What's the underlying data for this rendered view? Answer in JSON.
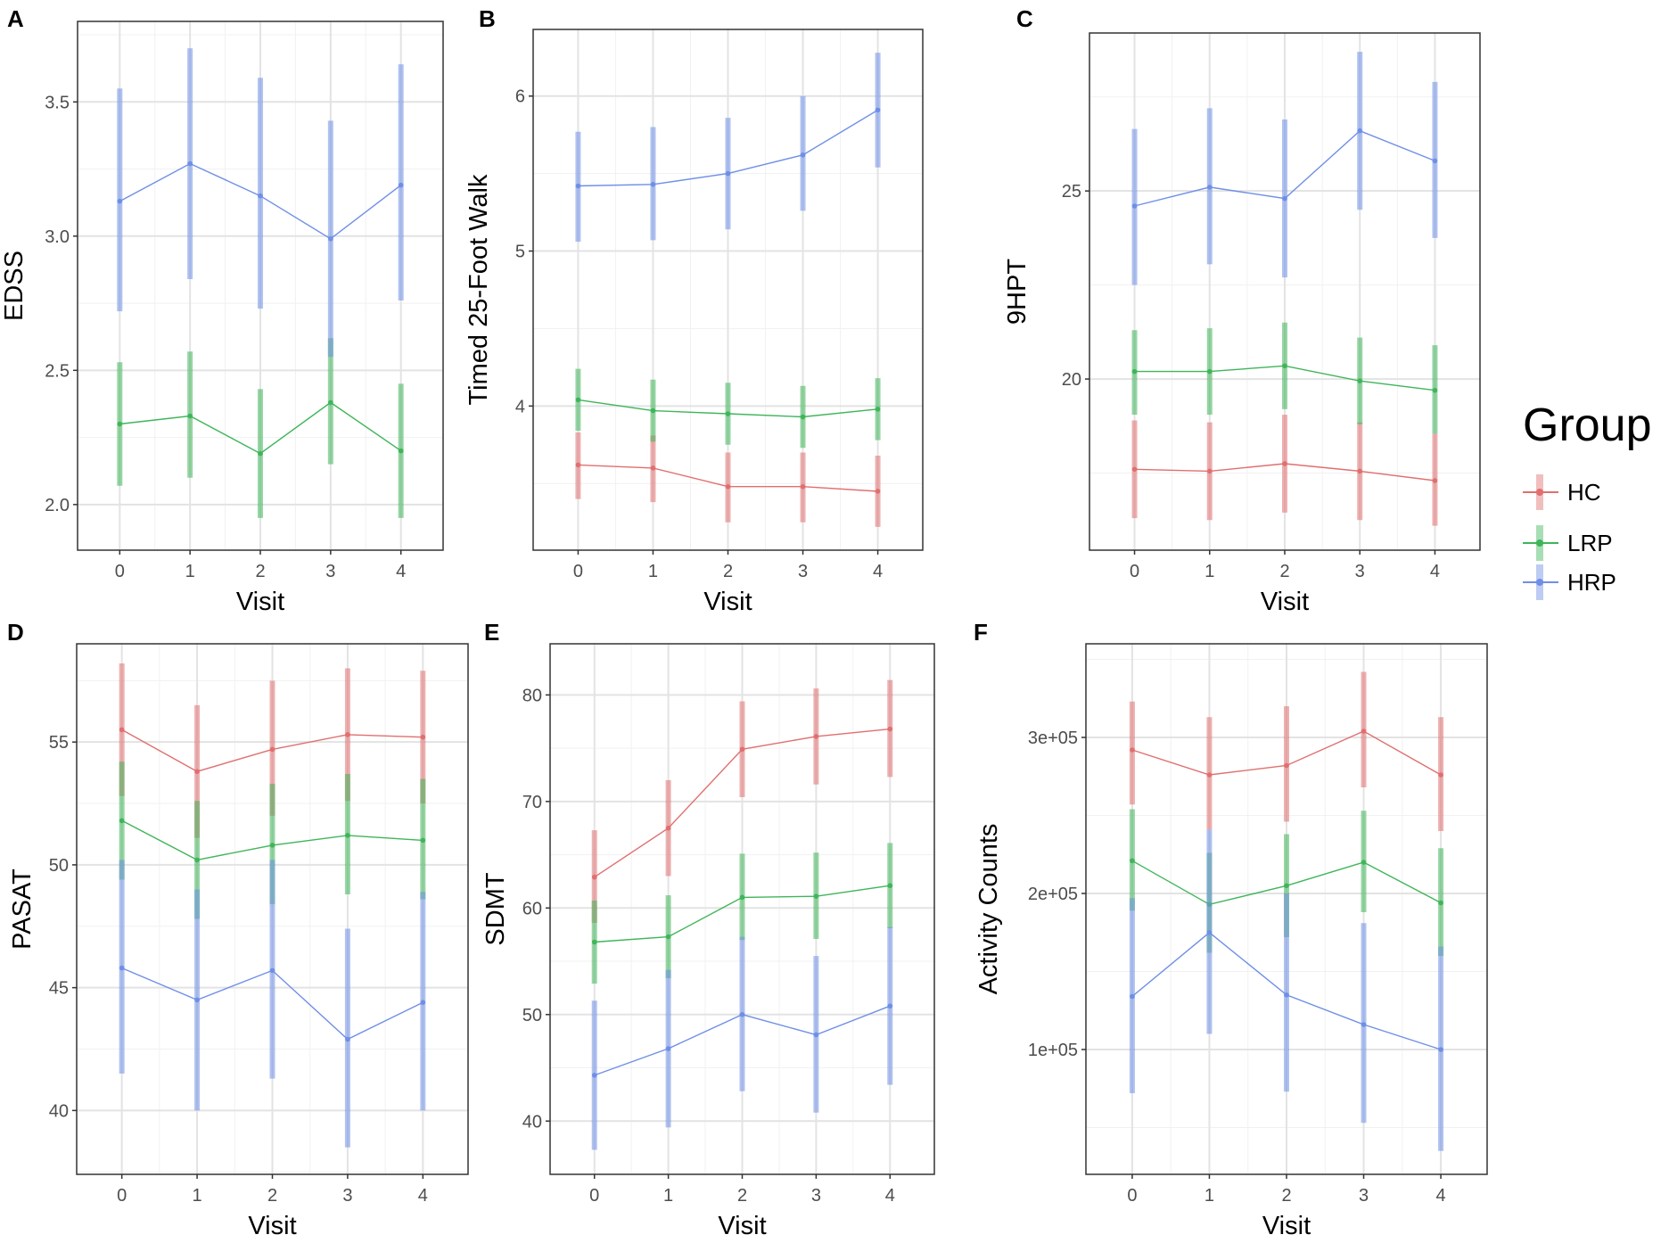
{
  "colors": {
    "HC": "#e06f6f",
    "LRP": "#3fb55a",
    "HRP": "#6f8fe6"
  },
  "legend": {
    "title": "Group",
    "items": [
      {
        "label": "HC",
        "series": "HC"
      },
      {
        "label": "LRP",
        "series": "LRP"
      },
      {
        "label": "HRP",
        "series": "HRP"
      }
    ]
  },
  "chart_data": [
    {
      "panel": "A",
      "type": "line",
      "title": "",
      "xlabel": "Visit",
      "ylabel": "EDSS",
      "x": [
        0,
        1,
        2,
        3,
        4
      ],
      "xlim": [
        -0.6,
        4.6
      ],
      "ylim": [
        1.83,
        3.8
      ],
      "yticks": [
        2.0,
        2.5,
        3.0,
        3.5
      ],
      "ytick_labels": [
        "2.0",
        "2.5",
        "3.0",
        "3.5"
      ],
      "series": [
        {
          "name": "LRP",
          "values": [
            2.3,
            2.33,
            2.19,
            2.38,
            2.2
          ],
          "lower": [
            2.07,
            2.1,
            1.95,
            2.15,
            1.95
          ],
          "upper": [
            2.53,
            2.57,
            2.43,
            2.62,
            2.45
          ]
        },
        {
          "name": "HRP",
          "values": [
            3.13,
            3.27,
            3.15,
            2.99,
            3.19
          ],
          "lower": [
            2.72,
            2.84,
            2.73,
            2.55,
            2.76
          ],
          "upper": [
            3.55,
            3.7,
            3.59,
            3.43,
            3.64
          ]
        }
      ]
    },
    {
      "panel": "B",
      "type": "line",
      "title": "",
      "xlabel": "Visit",
      "ylabel": "Timed 25-Foot Walk",
      "x": [
        0,
        1,
        2,
        3,
        4
      ],
      "xlim": [
        -0.6,
        4.6
      ],
      "ylim": [
        3.07,
        6.43
      ],
      "yticks": [
        4,
        5,
        6
      ],
      "ytick_labels": [
        "4",
        "5",
        "6"
      ],
      "series": [
        {
          "name": "HC",
          "values": [
            3.62,
            3.6,
            3.48,
            3.48,
            3.45
          ],
          "lower": [
            3.4,
            3.38,
            3.25,
            3.25,
            3.22
          ],
          "upper": [
            3.83,
            3.81,
            3.7,
            3.7,
            3.68
          ]
        },
        {
          "name": "LRP",
          "values": [
            4.04,
            3.97,
            3.95,
            3.93,
            3.98
          ],
          "lower": [
            3.84,
            3.77,
            3.75,
            3.73,
            3.78
          ],
          "upper": [
            4.24,
            4.17,
            4.15,
            4.13,
            4.18
          ]
        },
        {
          "name": "HRP",
          "values": [
            5.42,
            5.43,
            5.5,
            5.62,
            5.91
          ],
          "lower": [
            5.06,
            5.07,
            5.14,
            5.26,
            5.54
          ],
          "upper": [
            5.77,
            5.8,
            5.86,
            6.0,
            6.28
          ]
        }
      ]
    },
    {
      "panel": "C",
      "type": "line",
      "title": "",
      "xlabel": "Visit",
      "ylabel": "9HPT",
      "x": [
        0,
        1,
        2,
        3,
        4
      ],
      "xlim": [
        -0.6,
        4.6
      ],
      "ylim": [
        15.45,
        29.2
      ],
      "yticks": [
        20,
        25
      ],
      "ytick_labels": [
        "20",
        "25"
      ],
      "series": [
        {
          "name": "HC",
          "values": [
            17.6,
            17.55,
            17.75,
            17.55,
            17.3
          ],
          "lower": [
            16.3,
            16.25,
            16.45,
            16.25,
            16.1
          ],
          "upper": [
            18.9,
            18.85,
            19.05,
            18.85,
            18.55
          ]
        },
        {
          "name": "LRP",
          "values": [
            20.2,
            20.2,
            20.35,
            19.95,
            19.7
          ],
          "lower": [
            19.05,
            19.05,
            19.2,
            18.8,
            18.55
          ],
          "upper": [
            21.3,
            21.35,
            21.5,
            21.1,
            20.9
          ]
        },
        {
          "name": "HRP",
          "values": [
            24.6,
            25.1,
            24.8,
            26.6,
            25.8
          ],
          "lower": [
            22.5,
            23.05,
            22.7,
            24.5,
            23.75
          ],
          "upper": [
            26.65,
            27.2,
            26.9,
            28.7,
            27.9
          ]
        }
      ]
    },
    {
      "panel": "D",
      "type": "line",
      "title": "",
      "xlabel": "Visit",
      "ylabel": "PASAT",
      "x": [
        0,
        1,
        2,
        3,
        4
      ],
      "xlim": [
        -0.6,
        4.6
      ],
      "ylim": [
        37.4,
        59.0
      ],
      "yticks": [
        40,
        45,
        50,
        55
      ],
      "ytick_labels": [
        "40",
        "45",
        "50",
        "55"
      ],
      "series": [
        {
          "name": "HC",
          "values": [
            55.5,
            53.8,
            54.7,
            55.3,
            55.2
          ],
          "lower": [
            52.8,
            51.1,
            52.0,
            52.6,
            52.5
          ],
          "upper": [
            58.2,
            56.5,
            57.5,
            58.0,
            57.9
          ]
        },
        {
          "name": "LRP",
          "values": [
            51.8,
            50.2,
            50.8,
            51.2,
            51.0
          ],
          "lower": [
            49.4,
            47.8,
            48.4,
            48.8,
            48.6
          ],
          "upper": [
            54.2,
            52.6,
            53.3,
            53.7,
            53.5
          ]
        },
        {
          "name": "HRP",
          "values": [
            45.8,
            44.5,
            45.7,
            42.9,
            44.4
          ],
          "lower": [
            41.5,
            40.0,
            41.3,
            38.5,
            40.0
          ],
          "upper": [
            50.2,
            49.0,
            50.2,
            47.4,
            48.9
          ]
        }
      ]
    },
    {
      "panel": "E",
      "type": "line",
      "title": "",
      "xlabel": "Visit",
      "ylabel": "SDMT",
      "x": [
        0,
        1,
        2,
        3,
        4
      ],
      "xlim": [
        -0.6,
        4.6
      ],
      "ylim": [
        35.0,
        84.8
      ],
      "yticks": [
        40,
        50,
        60,
        70,
        80
      ],
      "ytick_labels": [
        "40",
        "50",
        "60",
        "70",
        "80"
      ],
      "series": [
        {
          "name": "HC",
          "values": [
            62.9,
            67.5,
            74.9,
            76.1,
            76.8
          ],
          "lower": [
            58.6,
            63.0,
            70.4,
            71.6,
            72.3
          ],
          "upper": [
            67.3,
            72.0,
            79.4,
            80.6,
            81.4
          ]
        },
        {
          "name": "LRP",
          "values": [
            56.8,
            57.3,
            61.0,
            61.1,
            62.1
          ],
          "lower": [
            52.9,
            53.4,
            57.0,
            57.1,
            58.1
          ],
          "upper": [
            60.7,
            61.2,
            65.1,
            65.2,
            66.1
          ]
        },
        {
          "name": "HRP",
          "values": [
            44.3,
            46.8,
            50.0,
            48.1,
            50.8
          ],
          "lower": [
            37.3,
            39.4,
            42.8,
            40.8,
            43.4
          ],
          "upper": [
            51.3,
            54.2,
            57.3,
            55.5,
            58.2
          ]
        }
      ]
    },
    {
      "panel": "F",
      "type": "line",
      "title": "",
      "xlabel": "Visit",
      "ylabel": "Activity Counts",
      "x": [
        0,
        1,
        2,
        3,
        4
      ],
      "xlim": [
        -0.6,
        4.6
      ],
      "ylim": [
        20000,
        360000
      ],
      "yticks": [
        100000,
        200000,
        300000
      ],
      "ytick_labels": [
        "1e+05",
        "2e+05",
        "3e+05"
      ],
      "series": [
        {
          "name": "HC",
          "values": [
            292000,
            276000,
            282000,
            304000,
            276000
          ],
          "lower": [
            257000,
            241000,
            246000,
            268000,
            240000
          ],
          "upper": [
            323000,
            313000,
            320000,
            342000,
            313000
          ]
        },
        {
          "name": "LRP",
          "values": [
            221000,
            193000,
            205000,
            220000,
            194000
          ],
          "lower": [
            189000,
            162000,
            172000,
            188000,
            160000
          ],
          "upper": [
            254000,
            226000,
            238000,
            253000,
            229000
          ]
        },
        {
          "name": "HRP",
          "values": [
            134000,
            175000,
            135000,
            116000,
            100000
          ],
          "lower": [
            72000,
            110000,
            73000,
            53000,
            35000
          ],
          "upper": [
            197000,
            241000,
            200000,
            181000,
            166000
          ]
        }
      ]
    }
  ]
}
